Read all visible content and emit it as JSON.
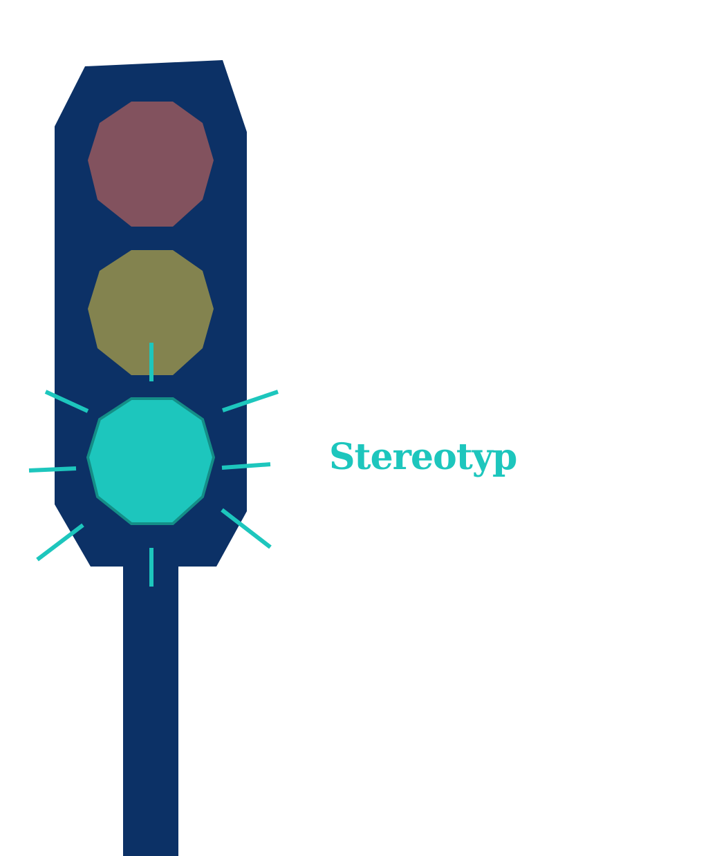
{
  "text": {
    "label": "Stereotyp"
  },
  "colors": {
    "background": "#ffffff",
    "housing": "#0c3166",
    "red_light": "#82525e",
    "yellow_light": "#83834f",
    "green_light": "#1dc6bd",
    "green_light_outline": "#148e87",
    "rays": "#1dc6bd",
    "label": "#1dc6bd"
  },
  "lights": {
    "red": "off",
    "yellow": "off",
    "green": "on"
  }
}
